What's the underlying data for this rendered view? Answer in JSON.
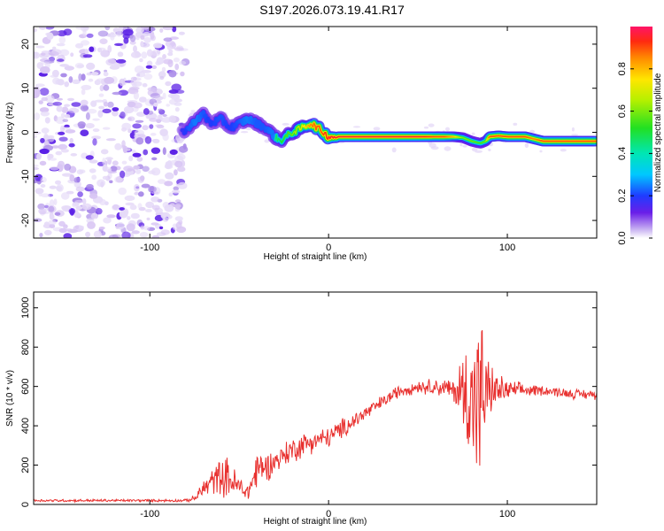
{
  "title": "S197.2026.073.19.41.R17",
  "colors": {
    "snr_line": "#e8302e",
    "speckle_light": "#d9c6f4",
    "speckle_dark": "#5a1fe6"
  },
  "chart_data": [
    {
      "type": "heatmap",
      "xlabel": "Height of straight line (km)",
      "ylabel": "Frequency (Hz)",
      "xlim": [
        -165,
        150
      ],
      "ylim": [
        -24,
        24
      ],
      "xticks": [
        {
          "v": -100,
          "label": "-100"
        },
        {
          "v": 0,
          "label": "0"
        },
        {
          "v": 100,
          "label": "100"
        }
      ],
      "yticks": [
        {
          "v": -20,
          "label": "-20"
        },
        {
          "v": -10,
          "label": "-10"
        },
        {
          "v": 0,
          "label": "0"
        },
        {
          "v": 10,
          "label": "10"
        },
        {
          "v": 20,
          "label": "20"
        }
      ],
      "colorbar": {
        "label": "Normalized spectral amplitude",
        "range": [
          0,
          1
        ],
        "ticks": [
          {
            "v": 0.0,
            "label": "0.0"
          },
          {
            "v": 0.2,
            "label": "0.2"
          },
          {
            "v": 0.4,
            "label": "0.4"
          },
          {
            "v": 0.6,
            "label": "0.6"
          },
          {
            "v": 0.8,
            "label": "0.8"
          }
        ]
      },
      "noise_region_x": [
        -165,
        -82
      ],
      "ridge": {
        "x": [
          -82,
          -78,
          -74,
          -70,
          -66,
          -60,
          -55,
          -50,
          -45,
          -40,
          -35,
          -30,
          -27,
          -24,
          -20,
          -15,
          -10,
          -6,
          -3,
          0,
          10,
          30,
          50,
          60,
          65,
          70,
          75,
          80,
          85,
          88,
          90,
          95,
          100,
          110,
          115,
          120,
          130,
          150
        ],
        "freq": [
          0,
          1,
          3,
          4,
          2,
          3,
          1,
          2,
          3,
          2,
          1,
          -1,
          -2,
          -1,
          0,
          1,
          2,
          1,
          0,
          -1,
          -1,
          -1,
          -1,
          -1,
          -1,
          -1,
          -1.2,
          -2,
          -2.5,
          -2,
          -1,
          -0.8,
          -1,
          -1,
          -1.5,
          -2,
          -2,
          -2
        ],
        "amplitude": [
          0.3,
          0.4,
          0.45,
          0.4,
          0.35,
          0.4,
          0.35,
          0.4,
          0.45,
          0.4,
          0.4,
          0.45,
          0.5,
          0.55,
          0.6,
          0.7,
          0.85,
          0.9,
          0.9,
          0.95,
          0.95,
          0.95,
          0.95,
          0.9,
          0.9,
          0.8,
          0.6,
          0.6,
          0.55,
          0.6,
          0.9,
          0.9,
          0.9,
          0.9,
          0.85,
          0.9,
          0.9,
          0.9
        ]
      }
    },
    {
      "type": "line",
      "xlabel": "Height of straight line (km)",
      "ylabel": "SNR (10 * v/v)",
      "xlim": [
        -165,
        150
      ],
      "ylim": [
        0,
        1080
      ],
      "xticks": [
        {
          "v": -100,
          "label": "-100"
        },
        {
          "v": 0,
          "label": "0"
        },
        {
          "v": 100,
          "label": "100"
        }
      ],
      "yticks": [
        {
          "v": 0,
          "label": "0"
        },
        {
          "v": 200,
          "label": "200"
        },
        {
          "v": 400,
          "label": "400"
        },
        {
          "v": 600,
          "label": "600"
        },
        {
          "v": 800,
          "label": "800"
        },
        {
          "v": 1000,
          "label": "1000"
        }
      ],
      "envelope": {
        "x": [
          -165,
          -80,
          -75,
          -70,
          -62,
          -57,
          -52,
          -45,
          -40,
          -35,
          -30,
          -20,
          -10,
          0,
          10,
          20,
          30,
          40,
          50,
          60,
          70,
          75,
          80,
          85,
          90,
          100,
          110,
          120,
          130,
          140,
          150
        ],
        "mean": [
          20,
          20,
          30,
          80,
          140,
          140,
          100,
          60,
          180,
          190,
          220,
          280,
          320,
          340,
          400,
          460,
          520,
          580,
          600,
          600,
          580,
          570,
          550,
          540,
          580,
          580,
          580,
          580,
          570,
          560,
          560
        ],
        "amp": [
          8,
          8,
          20,
          60,
          100,
          120,
          90,
          50,
          130,
          90,
          70,
          80,
          70,
          60,
          60,
          50,
          40,
          40,
          40,
          50,
          70,
          250,
          450,
          520,
          150,
          60,
          40,
          30,
          30,
          30,
          30
        ]
      }
    }
  ]
}
